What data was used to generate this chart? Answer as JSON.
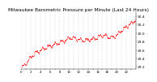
{
  "title": "Milwaukee Barometric Pressure per Minute (Last 24 Hours)",
  "title_fontsize": 4.2,
  "line_color": "#ff0000",
  "bg_color": "#ffffff",
  "grid_color": "#b0b0b0",
  "ylim": [
    29.15,
    30.5
  ],
  "yticks": [
    29.2,
    29.4,
    29.6,
    29.8,
    30.0,
    30.2,
    30.4
  ],
  "ytick_fontsize": 3.2,
  "xtick_fontsize": 2.8,
  "marker_size": 0.55,
  "num_points": 1440,
  "x_num_ticks": 25
}
